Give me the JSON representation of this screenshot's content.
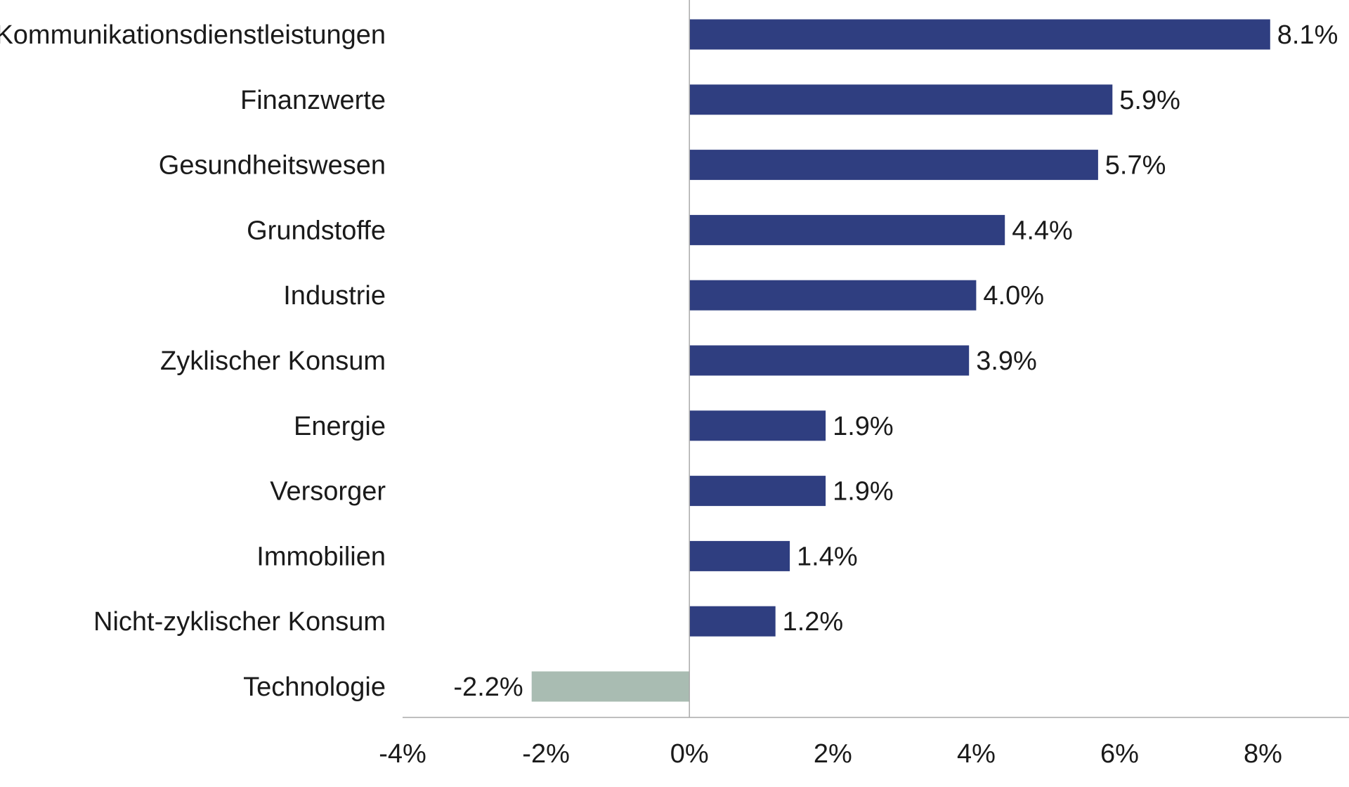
{
  "chart_data": {
    "type": "bar",
    "orientation": "horizontal",
    "categories": [
      "Kommunikationsdienstleistungen",
      "Finanzwerte",
      "Gesundheitswesen",
      "Grundstoffe",
      "Industrie",
      "Zyklischer Konsum",
      "Energie",
      "Versorger",
      "Immobilien",
      "Nicht-zyklischer Konsum",
      "Technologie"
    ],
    "values": [
      8.1,
      5.9,
      5.7,
      4.4,
      4.0,
      3.9,
      1.9,
      1.9,
      1.4,
      1.2,
      -2.2
    ],
    "value_labels": [
      "8.1%",
      "5.9%",
      "5.7%",
      "4.4%",
      "4.0%",
      "3.9%",
      "1.9%",
      "1.9%",
      "1.4%",
      "1.2%",
      "-2.2%"
    ],
    "xlim": [
      -4,
      9.2
    ],
    "xticks": [
      -4,
      -2,
      0,
      2,
      4,
      6,
      8
    ],
    "xtick_labels": [
      "-4%",
      "-2%",
      "0%",
      "2%",
      "4%",
      "6%",
      "8%"
    ],
    "grid": false,
    "title": "",
    "xlabel": "",
    "ylabel": "",
    "colors": {
      "positive": "#2f3e80",
      "negative": "#a9bcb2",
      "axis": "#aaaaaa",
      "text": "#1a1a1a"
    }
  }
}
